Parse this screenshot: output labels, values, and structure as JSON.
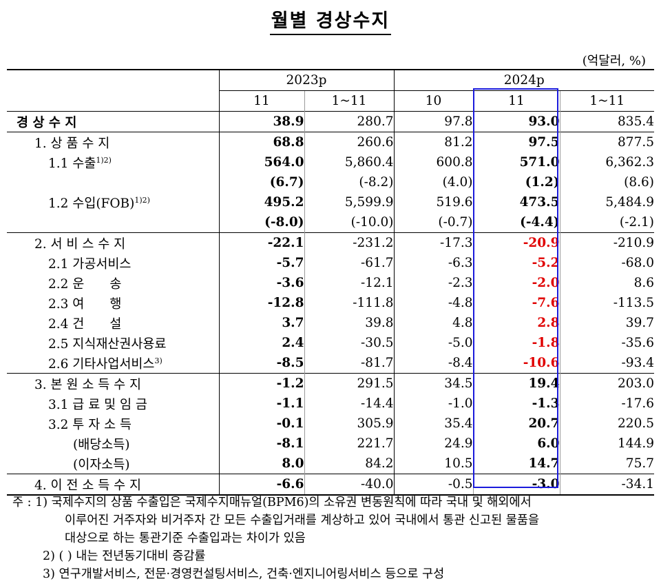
{
  "title": "월별 경상수지",
  "unit": "(억달러, %)",
  "headers": {
    "year_2023": "2023p",
    "year_2024": "2024p",
    "cols": [
      "11",
      "1~11",
      "10",
      "11",
      "1~11"
    ]
  },
  "rows": [
    {
      "label": "경 상 수 지",
      "values": [
        "38.9",
        "280.7",
        "97.8",
        "93.0",
        "835.4"
      ]
    },
    {
      "label": "1. 상 품 수 지",
      "values": [
        "68.8",
        "260.6",
        "81.2",
        "97.5",
        "877.5"
      ]
    },
    {
      "label": "1.1 수출",
      "sup": "1)2)",
      "values": [
        "564.0",
        "5,860.4",
        "600.8",
        "571.0",
        "6,362.3"
      ]
    },
    {
      "label": "",
      "values": [
        "(6.7)",
        "(-8.2)",
        "(4.0)",
        "(1.2)",
        "(8.6)"
      ]
    },
    {
      "label": "1.2 수입(FOB)",
      "sup": "1)2)",
      "values": [
        "495.2",
        "5,599.9",
        "519.6",
        "473.5",
        "5,484.9"
      ]
    },
    {
      "label": "",
      "values": [
        "(-8.0)",
        "(-10.0)",
        "(-0.7)",
        "(-4.4)",
        "(-2.1)"
      ]
    },
    {
      "label": "2. 서 비 스 수 지",
      "values": [
        "-22.1",
        "-231.2",
        "-17.3",
        "-20.9",
        "-210.9"
      ]
    },
    {
      "label": "2.1 가공서비스",
      "values": [
        "-5.7",
        "-61.7",
        "-6.3",
        "-5.2",
        "-68.0"
      ]
    },
    {
      "label": "2.2 운　　송",
      "values": [
        "-3.6",
        "-12.1",
        "-2.3",
        "-2.0",
        "8.6"
      ]
    },
    {
      "label": "2.3 여　　행",
      "values": [
        "-12.8",
        "-111.8",
        "-4.8",
        "-7.6",
        "-113.5"
      ]
    },
    {
      "label": "2.4 건　　설",
      "values": [
        "3.7",
        "39.8",
        "4.8",
        "2.8",
        "39.7"
      ]
    },
    {
      "label": "2.5 지식재산권사용료",
      "values": [
        "2.4",
        "-30.5",
        "-5.0",
        "-1.8",
        "-35.6"
      ]
    },
    {
      "label": "2.6 기타사업서비스",
      "sup": "3)",
      "values": [
        "-8.5",
        "-81.7",
        "-8.4",
        "-10.6",
        "-93.4"
      ]
    },
    {
      "label": "3. 본 원 소 득 수 지",
      "values": [
        "-1.2",
        "291.5",
        "34.5",
        "19.4",
        "203.0"
      ]
    },
    {
      "label": "3.1 급 료 및 임 금",
      "values": [
        "-1.1",
        "-14.4",
        "-1.0",
        "-1.3",
        "-17.6"
      ]
    },
    {
      "label": "3.2 투 자 소 득",
      "values": [
        "-0.1",
        "305.9",
        "35.4",
        "20.7",
        "220.5"
      ]
    },
    {
      "label": "(배당소득)",
      "values": [
        "-8.1",
        "221.7",
        "24.9",
        "6.0",
        "144.9"
      ]
    },
    {
      "label": "(이자소득)",
      "values": [
        "8.0",
        "84.2",
        "10.5",
        "14.7",
        "75.7"
      ]
    },
    {
      "label": "4. 이 전 소 득 수 지",
      "values": [
        "-6.6",
        "-40.0",
        "-0.5",
        "-3.0",
        "-34.1"
      ]
    }
  ],
  "notes": {
    "prefix": "주 : 1)",
    "n1_a": "국제수지의 상품 수출입은 국제수지매뉴얼(BPM6)의 소유권 변동원칙에 따라 국내 및 해외에서",
    "n1_b": "이루어진 거주자와 비거주자 간 모든 수출입거래를 계상하고 있어 국내에서 통관 신고된 물품을",
    "n1_c": "대상으로 하는 통관기준 수출입과는 차이가 있음",
    "n2": "2) (   ) 내는 전년동기대비 증감률",
    "n3": "3) 연구개발서비스, 전문·경영컨설팅서비스, 건축·엔지니어링서비스 등으로 구성"
  },
  "colors": {
    "highlight_border": "#1a1adc",
    "negative_highlight": "#e00000"
  }
}
